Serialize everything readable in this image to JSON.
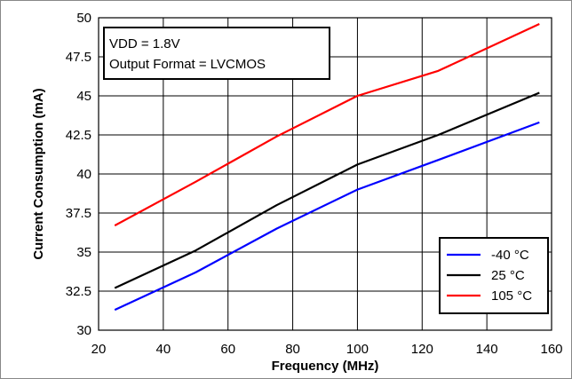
{
  "chart_data": {
    "type": "line",
    "title": "",
    "xlabel": "Frequency (MHz)",
    "ylabel": "Current Consumption (mA)",
    "xlim": [
      20,
      160
    ],
    "ylim": [
      30,
      50
    ],
    "xticks": [
      20,
      40,
      60,
      80,
      100,
      120,
      140,
      160
    ],
    "yticks": [
      30,
      32.5,
      35,
      37.5,
      40,
      42.5,
      45,
      47.5,
      50
    ],
    "grid": true,
    "legend_position": "bottom-right",
    "annotation_lines": [
      "VDD = 1.8V",
      "Output Format = LVCMOS"
    ],
    "series": [
      {
        "name": "-40 °C",
        "color": "#0000ff",
        "x": [
          25,
          50,
          75,
          100,
          125,
          156.25
        ],
        "y": [
          31.3,
          33.7,
          36.5,
          39.0,
          40.9,
          43.3
        ]
      },
      {
        "name": "25 °C",
        "color": "#000000",
        "x": [
          25,
          50,
          75,
          100,
          125,
          156.25
        ],
        "y": [
          32.7,
          35.1,
          38.0,
          40.6,
          42.5,
          45.2
        ]
      },
      {
        "name": "105 °C",
        "color": "#ff0000",
        "x": [
          25,
          50,
          75,
          100,
          125,
          156.25
        ],
        "y": [
          36.7,
          39.5,
          42.4,
          45.0,
          46.6,
          49.6
        ]
      }
    ]
  }
}
